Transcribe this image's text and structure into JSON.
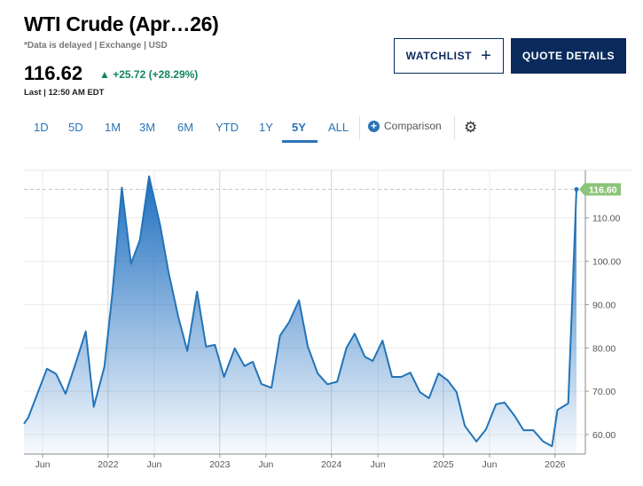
{
  "header": {
    "title": "WTI Crude (Apr…26)",
    "subtitle": "*Data is delayed | Exchange | USD",
    "price": "116.62",
    "change": "+25.72 (+28.29%)",
    "last": "Last | 12:50 AM EDT"
  },
  "buttons": {
    "watchlist": "WATCHLIST",
    "watchlist_icon": "plus-icon",
    "quote": "QUOTE DETAILS"
  },
  "tabs": [
    {
      "label": "1D"
    },
    {
      "label": "5D"
    },
    {
      "label": "1M"
    },
    {
      "label": "3M"
    },
    {
      "label": "6M"
    },
    {
      "label": "YTD"
    },
    {
      "label": "1Y"
    },
    {
      "label": "5Y",
      "active": true
    },
    {
      "label": "ALL"
    }
  ],
  "comparison": "Comparison",
  "colors": {
    "line": "#2274b8",
    "up": "#12875b",
    "last_badge": "#8cc47a",
    "navy": "#0a2a5c"
  },
  "chart_data": {
    "type": "area",
    "title": "",
    "xlabel": "",
    "ylabel": "",
    "xlim": [
      "2021-04-01",
      "2026-04-10"
    ],
    "ylim": [
      55.5,
      121
    ],
    "grid": true,
    "x_ticks": [
      {
        "date": "2021-06-01",
        "label": "Jun"
      },
      {
        "date": "2022-01-01",
        "label": "2022"
      },
      {
        "date": "2022-06-01",
        "label": "Jun"
      },
      {
        "date": "2023-01-01",
        "label": "2023"
      },
      {
        "date": "2023-06-01",
        "label": "Jun"
      },
      {
        "date": "2024-01-01",
        "label": "2024"
      },
      {
        "date": "2024-06-01",
        "label": "Jun"
      },
      {
        "date": "2025-01-01",
        "label": "2025"
      },
      {
        "date": "2025-06-01",
        "label": "Jun"
      },
      {
        "date": "2026-01-01",
        "label": "2026"
      }
    ],
    "y_ticks": [
      60,
      70,
      80,
      90,
      100,
      110
    ],
    "last_value_label": "116.60",
    "last_value": 116.6,
    "series": [
      {
        "points": [
          [
            "2021-04-01",
            62.5
          ],
          [
            "2021-04-15",
            63.9
          ],
          [
            "2021-06-15",
            75.2
          ],
          [
            "2021-07-15",
            74.0
          ],
          [
            "2021-08-15",
            69.4
          ],
          [
            "2021-09-15",
            76.0
          ],
          [
            "2021-10-20",
            83.8
          ],
          [
            "2021-11-15",
            66.4
          ],
          [
            "2021-12-20",
            75.6
          ],
          [
            "2022-01-15",
            92.6
          ],
          [
            "2022-02-15",
            117.0
          ],
          [
            "2022-03-17",
            99.4
          ],
          [
            "2022-04-15",
            104.9
          ],
          [
            "2022-05-15",
            119.6
          ],
          [
            "2022-06-21",
            108.0
          ],
          [
            "2022-07-17",
            97.7
          ],
          [
            "2022-08-19",
            87.0
          ],
          [
            "2022-09-17",
            79.3
          ],
          [
            "2022-10-19",
            93.0
          ],
          [
            "2022-11-17",
            80.3
          ],
          [
            "2022-12-16",
            80.7
          ],
          [
            "2023-01-15",
            73.3
          ],
          [
            "2023-02-19",
            79.9
          ],
          [
            "2023-03-23",
            75.8
          ],
          [
            "2023-04-19",
            76.8
          ],
          [
            "2023-05-17",
            71.7
          ],
          [
            "2023-06-19",
            70.8
          ],
          [
            "2023-07-17",
            82.8
          ],
          [
            "2023-08-16",
            86.0
          ],
          [
            "2023-09-17",
            91.0
          ],
          [
            "2023-10-16",
            80.3
          ],
          [
            "2023-11-17",
            74.1
          ],
          [
            "2023-12-19",
            71.6
          ],
          [
            "2024-01-20",
            72.2
          ],
          [
            "2024-02-19",
            80.0
          ],
          [
            "2024-03-17",
            83.3
          ],
          [
            "2024-04-19",
            78.0
          ],
          [
            "2024-05-15",
            77.0
          ],
          [
            "2024-06-16",
            81.7
          ],
          [
            "2024-07-17",
            73.3
          ],
          [
            "2024-08-16",
            73.3
          ],
          [
            "2024-09-15",
            74.3
          ],
          [
            "2024-10-16",
            69.8
          ],
          [
            "2024-11-15",
            68.4
          ],
          [
            "2024-12-16",
            74.1
          ],
          [
            "2025-01-15",
            72.5
          ],
          [
            "2025-02-13",
            69.8
          ],
          [
            "2025-03-12",
            62.0
          ],
          [
            "2025-04-19",
            58.4
          ],
          [
            "2025-05-20",
            61.2
          ],
          [
            "2025-06-22",
            67.0
          ],
          [
            "2025-07-20",
            67.4
          ],
          [
            "2025-08-22",
            64.3
          ],
          [
            "2025-09-20",
            61.0
          ],
          [
            "2025-10-22",
            61.0
          ],
          [
            "2025-11-23",
            58.4
          ],
          [
            "2025-12-22",
            57.3
          ],
          [
            "2026-01-09",
            65.7
          ],
          [
            "2026-02-13",
            67.2
          ],
          [
            "2026-03-12",
            116.6
          ]
        ]
      }
    ]
  }
}
